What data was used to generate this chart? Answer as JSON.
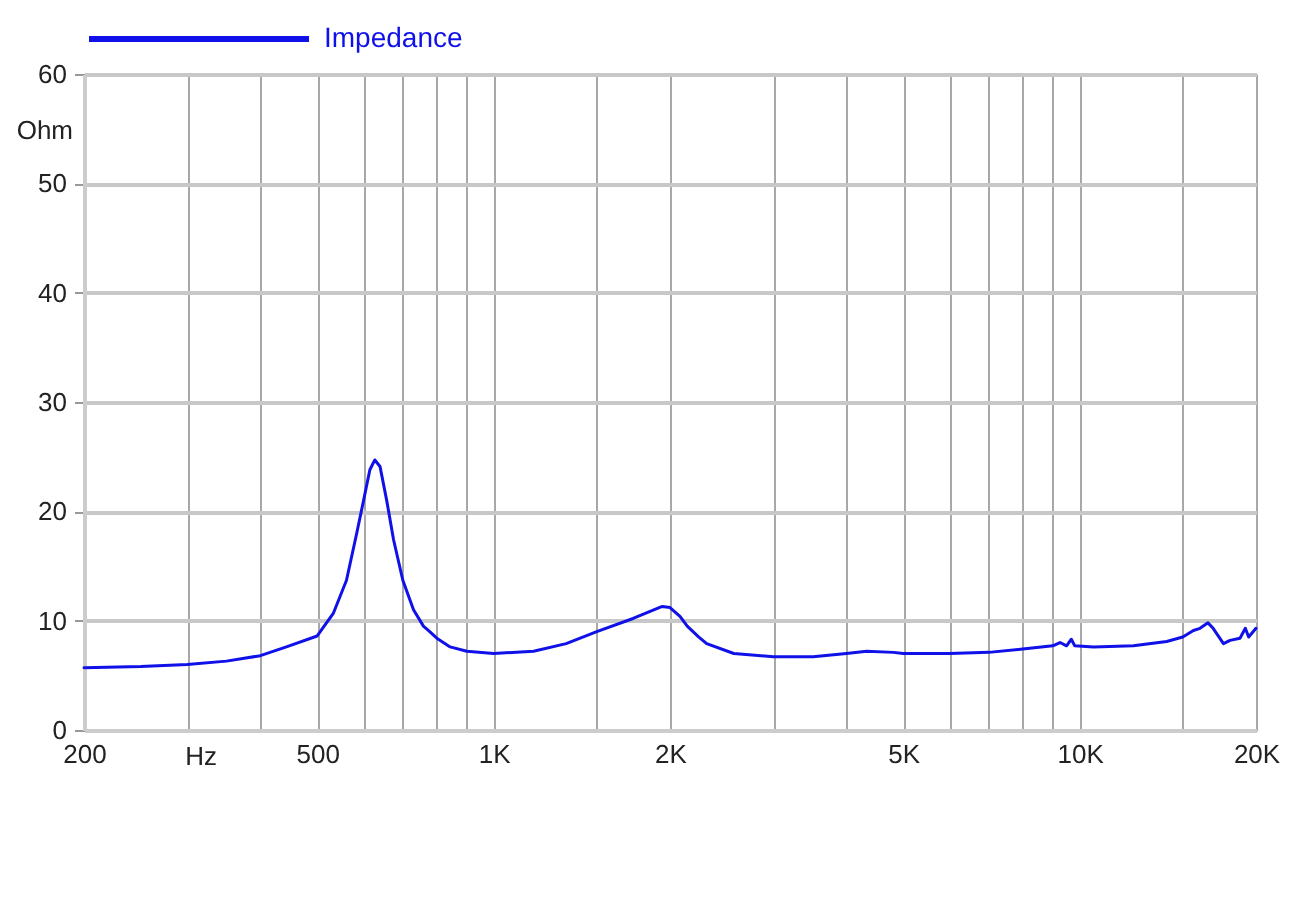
{
  "chart_data": {
    "type": "line",
    "xlabel": "Hz",
    "ylabel": "Ohm",
    "log": "x",
    "grid": true,
    "legend": "top left",
    "x": [
      200,
      250,
      300,
      350,
      400,
      443,
      500,
      533,
      561,
      584,
      600,
      615,
      627,
      640,
      657,
      675,
      700,
      730,
      759,
      778,
      800,
      843,
      900,
      1000,
      1170,
      1330,
      1500,
      1730,
      1940,
      2000,
      2080,
      2140,
      2240,
      2310,
      2570,
      3000,
      3510,
      4000,
      4330,
      4810,
      5000,
      6000,
      7000,
      8000,
      9000,
      9260,
      9500,
      9680,
      9810,
      10560,
      12350,
      14080,
      15000,
      15640,
      16050,
      16560,
      16900,
      17600,
      18060,
      18780,
      19180,
      19430,
      20000
    ],
    "series": [
      {
        "name": "Impedance",
        "color": "#1010e8",
        "values": [
          5.7,
          5.8,
          6.0,
          6.3,
          6.8,
          7.6,
          8.6,
          10.7,
          13.7,
          18.0,
          21.0,
          23.8,
          24.7,
          24.1,
          21.0,
          17.4,
          13.7,
          11.0,
          9.5,
          9.0,
          8.4,
          7.6,
          7.2,
          7.0,
          7.2,
          7.9,
          9.0,
          10.2,
          11.3,
          11.2,
          10.4,
          9.5,
          8.5,
          7.9,
          7.0,
          6.7,
          6.7,
          7.0,
          7.2,
          7.1,
          7.0,
          7.0,
          7.1,
          7.4,
          7.7,
          8.0,
          7.7,
          8.3,
          7.7,
          7.6,
          7.7,
          8.1,
          8.5,
          9.1,
          9.3,
          9.8,
          9.3,
          7.9,
          8.2,
          8.4,
          9.3,
          8.5,
          9.3
        ]
      }
    ],
    "xlim": [
      200,
      20000
    ],
    "xticks": [
      200,
      {
        "value": 300,
        "label": null
      },
      {
        "value": 400,
        "label": null
      },
      500,
      {
        "value": 600,
        "label": null
      },
      {
        "value": 700,
        "label": null
      },
      {
        "value": 800,
        "label": null
      },
      {
        "value": 900,
        "label": null
      },
      {
        "value": 1000,
        "label": "1K"
      },
      {
        "value": 1500,
        "label": null
      },
      {
        "value": 2000,
        "label": "2K"
      },
      {
        "value": 3000,
        "label": null
      },
      {
        "value": 4000,
        "label": null
      },
      {
        "value": 5000,
        "label": "5K"
      },
      {
        "value": 6000,
        "label": null
      },
      {
        "value": 7000,
        "label": null
      },
      {
        "value": 8000,
        "label": null
      },
      {
        "value": 9000,
        "label": null
      },
      {
        "value": 10000,
        "label": "10K"
      },
      {
        "value": 15000,
        "label": null
      },
      {
        "value": 20000,
        "label": "20K"
      }
    ],
    "ylim": [
      0,
      60
    ],
    "yticks": [
      0,
      10,
      20,
      30,
      40,
      50,
      60
    ]
  }
}
